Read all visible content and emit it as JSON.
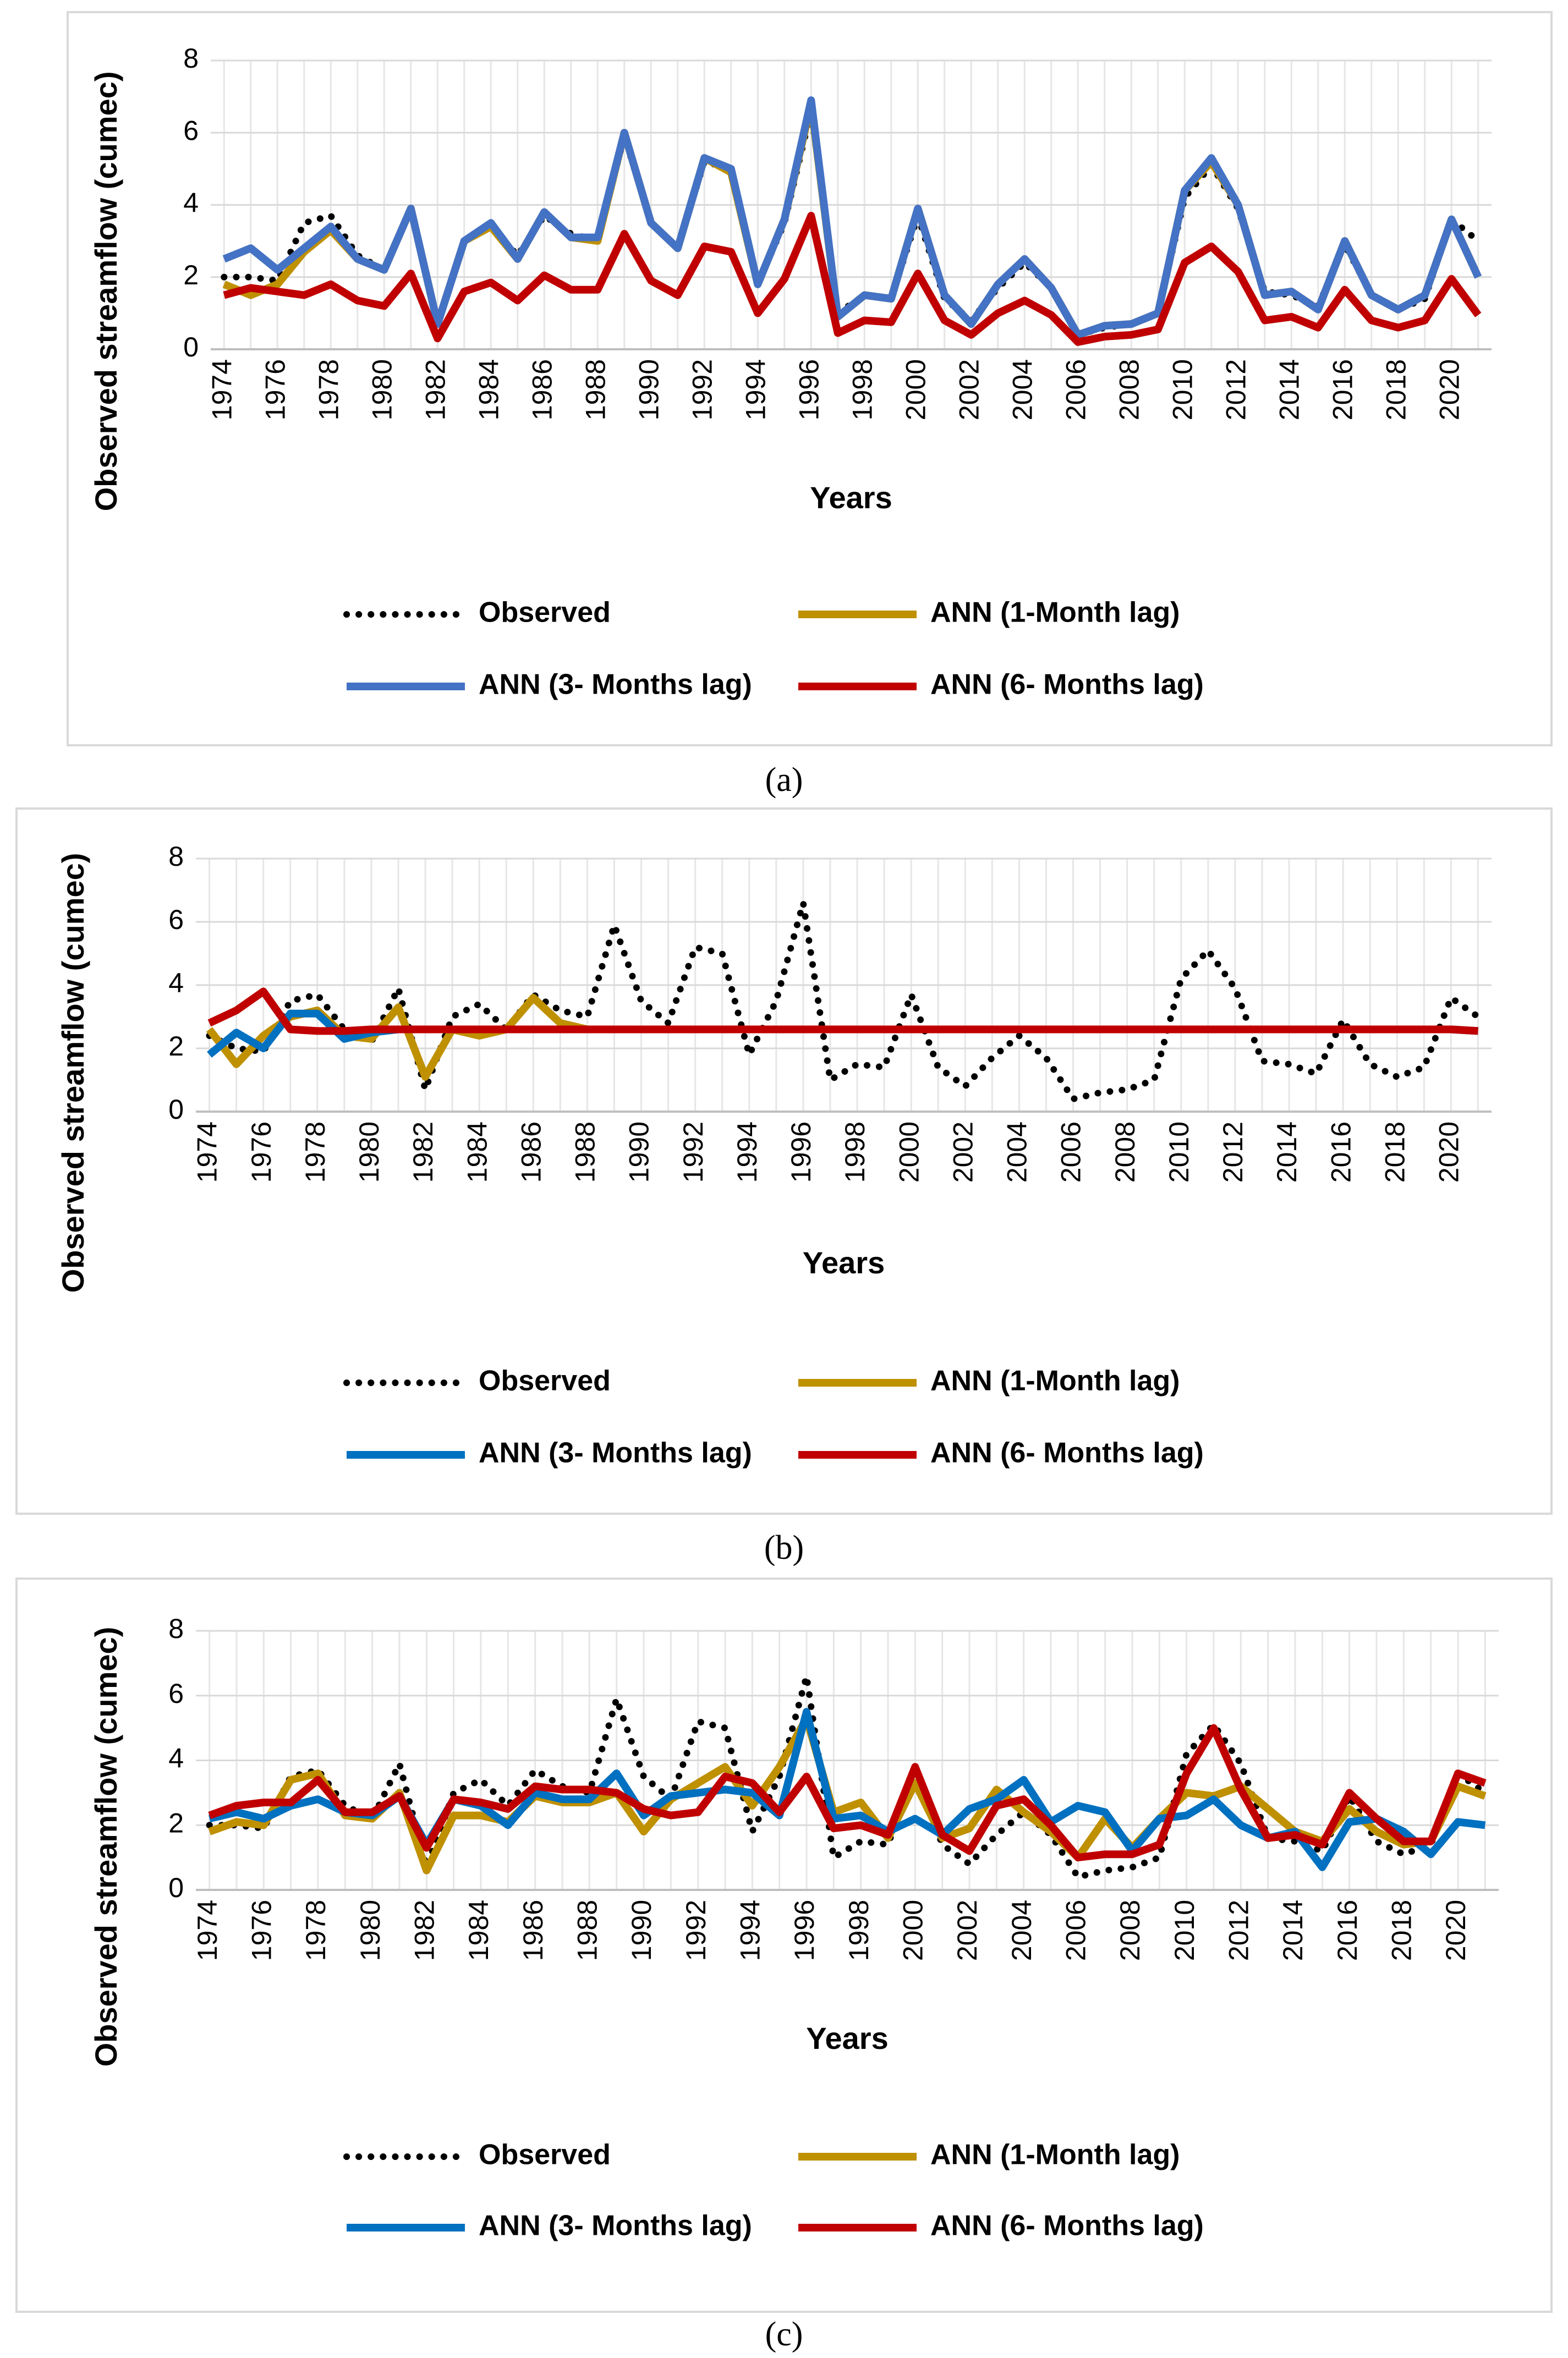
{
  "chart_data": [
    {
      "type": "line",
      "caption": "(a)",
      "xlabel": "Years",
      "ylabel": "Observed streamflow (cumec)",
      "x": [
        1974,
        1975,
        1976,
        1977,
        1978,
        1979,
        1980,
        1981,
        1982,
        1983,
        1984,
        1985,
        1986,
        1987,
        1988,
        1989,
        1990,
        1991,
        1992,
        1993,
        1994,
        1995,
        1996,
        1997,
        1998,
        1999,
        2000,
        2001,
        2002,
        2003,
        2004,
        2005,
        2006,
        2007,
        2008,
        2009,
        2010,
        2011,
        2012,
        2013,
        2014,
        2015,
        2016,
        2017,
        2018,
        2019,
        2020,
        2021
      ],
      "xlim": [
        1973.5,
        2021.5
      ],
      "xticks": [
        1974,
        1976,
        1978,
        1980,
        1982,
        1984,
        1986,
        1988,
        1990,
        1992,
        1994,
        1996,
        1998,
        2000,
        2002,
        2004,
        2006,
        2008,
        2010,
        2012,
        2014,
        2016,
        2018,
        2020
      ],
      "ylim": [
        0,
        8
      ],
      "yticks": [
        0,
        2,
        4,
        6,
        8
      ],
      "grid": true,
      "series": [
        {
          "name": "Observed",
          "color": "#000000",
          "style": "dotted",
          "values": [
            2.0,
            2.0,
            1.9,
            3.5,
            3.7,
            2.6,
            2.2,
            3.9,
            0.7,
            3.0,
            3.4,
            2.6,
            3.7,
            3.2,
            3.0,
            5.9,
            3.5,
            2.8,
            5.2,
            5.0,
            1.8,
            3.5,
            6.6,
            1.0,
            1.5,
            1.4,
            3.7,
            1.4,
            0.8,
            1.7,
            2.4,
            1.7,
            0.4,
            0.6,
            0.7,
            1.0,
            4.2,
            5.1,
            3.9,
            1.6,
            1.5,
            1.2,
            2.9,
            1.5,
            1.1,
            1.4,
            3.6,
            3.0
          ]
        },
        {
          "name": "ANN (1-Month lag)",
          "color": "#bf9000",
          "style": "solid",
          "values": [
            1.8,
            1.5,
            1.8,
            2.7,
            3.3,
            2.5,
            2.2,
            3.9,
            0.7,
            3.0,
            3.4,
            2.5,
            3.8,
            3.1,
            3.0,
            6.0,
            3.5,
            2.8,
            5.3,
            4.9,
            1.8,
            3.6,
            6.8,
            0.9,
            1.5,
            1.4,
            3.9,
            1.5,
            0.7,
            1.8,
            2.5,
            1.7,
            0.4,
            0.65,
            0.7,
            1.0,
            4.4,
            5.2,
            4.0,
            1.5,
            1.6,
            1.1,
            3.0,
            1.5,
            1.1,
            1.5,
            3.6,
            2.0
          ]
        },
        {
          "name": "ANN (3- Months lag)",
          "color": "#4472c4",
          "style": "solid",
          "values": [
            2.5,
            2.8,
            2.2,
            2.8,
            3.4,
            2.5,
            2.2,
            3.9,
            0.7,
            3.0,
            3.5,
            2.5,
            3.8,
            3.1,
            3.1,
            6.0,
            3.5,
            2.8,
            5.3,
            5.0,
            1.8,
            3.6,
            6.9,
            0.9,
            1.5,
            1.4,
            3.9,
            1.5,
            0.7,
            1.8,
            2.5,
            1.7,
            0.4,
            0.65,
            0.7,
            1.0,
            4.4,
            5.3,
            4.0,
            1.5,
            1.6,
            1.1,
            3.0,
            1.5,
            1.1,
            1.5,
            3.6,
            2.0
          ]
        },
        {
          "name": "ANN (6- Months lag)",
          "color": "#c00000",
          "style": "solid",
          "values": [
            1.5,
            1.7,
            1.6,
            1.5,
            1.8,
            1.35,
            1.2,
            2.1,
            0.3,
            1.6,
            1.85,
            1.35,
            2.05,
            1.65,
            1.65,
            3.2,
            1.9,
            1.5,
            2.85,
            2.7,
            1.0,
            1.95,
            3.7,
            0.45,
            0.8,
            0.75,
            2.1,
            0.8,
            0.4,
            1.0,
            1.35,
            0.95,
            0.2,
            0.35,
            0.4,
            0.55,
            2.4,
            2.85,
            2.15,
            0.8,
            0.9,
            0.6,
            1.65,
            0.8,
            0.6,
            0.8,
            1.95,
            0.95
          ]
        }
      ]
    },
    {
      "type": "line",
      "caption": "(b)",
      "xlabel": "Years",
      "ylabel": "Observed streamflow (cumec)",
      "x": [
        1974,
        1975,
        1976,
        1977,
        1978,
        1979,
        1980,
        1981,
        1982,
        1983,
        1984,
        1985,
        1986,
        1987,
        1988,
        1989,
        1990,
        1991,
        1992,
        1993,
        1994,
        1995,
        1996,
        1997,
        1998,
        1999,
        2000,
        2001,
        2002,
        2003,
        2004,
        2005,
        2006,
        2007,
        2008,
        2009,
        2010,
        2011,
        2012,
        2013,
        2014,
        2015,
        2016,
        2017,
        2018,
        2019,
        2020,
        2021
      ],
      "xlim": [
        1973.5,
        2021.5
      ],
      "xticks": [
        1974,
        1976,
        1978,
        1980,
        1982,
        1984,
        1986,
        1988,
        1990,
        1992,
        1994,
        1996,
        1998,
        2000,
        2002,
        2004,
        2006,
        2008,
        2010,
        2012,
        2014,
        2016,
        2018,
        2020
      ],
      "ylim": [
        0,
        8
      ],
      "yticks": [
        0,
        2,
        4,
        6,
        8
      ],
      "grid": true,
      "series": [
        {
          "name": "Observed",
          "color": "#000000",
          "style": "dotted",
          "values": [
            2.4,
            2.0,
            1.9,
            3.5,
            3.7,
            2.6,
            2.2,
            3.9,
            0.7,
            3.0,
            3.4,
            2.6,
            3.7,
            3.2,
            3.0,
            5.9,
            3.5,
            2.8,
            5.2,
            5.0,
            1.8,
            3.5,
            6.6,
            1.0,
            1.5,
            1.4,
            3.7,
            1.4,
            0.8,
            1.7,
            2.4,
            1.7,
            0.4,
            0.6,
            0.7,
            1.0,
            4.2,
            5.1,
            3.9,
            1.6,
            1.5,
            1.2,
            2.9,
            1.5,
            1.1,
            1.4,
            3.6,
            3.0
          ]
        },
        {
          "name": "ANN (1-Month lag)",
          "color": "#bf9000",
          "style": "solid",
          "values": [
            2.6,
            1.5,
            2.4,
            3.0,
            3.2,
            2.4,
            2.3,
            3.3,
            1.1,
            2.6,
            2.4,
            2.6,
            3.6,
            2.8,
            2.6,
            2.6,
            2.6,
            2.6,
            2.6,
            2.6,
            2.6,
            2.6,
            2.6,
            2.6,
            2.6,
            2.6,
            2.6,
            2.6,
            2.6,
            2.6,
            2.6,
            2.6,
            2.6,
            2.6,
            2.6,
            2.6,
            2.6,
            2.6,
            2.6,
            2.6,
            2.6,
            2.6,
            2.6,
            2.6,
            2.6,
            2.6,
            2.6,
            2.55
          ]
        },
        {
          "name": "ANN (3- Months lag)",
          "color": "#0070c0",
          "style": "solid",
          "values": [
            1.8,
            2.5,
            2.0,
            3.1,
            3.1,
            2.3,
            2.5,
            2.6,
            2.6,
            2.6,
            2.6,
            2.6,
            2.6,
            2.6,
            2.6,
            2.6,
            2.6,
            2.6,
            2.6,
            2.6,
            2.6,
            2.6,
            2.6,
            2.6,
            2.6,
            2.6,
            2.6,
            2.6,
            2.6,
            2.6,
            2.6,
            2.6,
            2.6,
            2.6,
            2.6,
            2.6,
            2.6,
            2.6,
            2.6,
            2.6,
            2.6,
            2.6,
            2.6,
            2.6,
            2.6,
            2.6,
            2.6,
            2.55
          ]
        },
        {
          "name": "ANN (6- Months lag)",
          "color": "#c00000",
          "style": "solid",
          "values": [
            2.8,
            3.2,
            3.8,
            2.6,
            2.55,
            2.55,
            2.6,
            2.6,
            2.6,
            2.6,
            2.6,
            2.6,
            2.6,
            2.6,
            2.6,
            2.6,
            2.6,
            2.6,
            2.6,
            2.6,
            2.6,
            2.6,
            2.6,
            2.6,
            2.6,
            2.6,
            2.6,
            2.6,
            2.6,
            2.6,
            2.6,
            2.6,
            2.6,
            2.6,
            2.6,
            2.6,
            2.6,
            2.6,
            2.6,
            2.6,
            2.6,
            2.6,
            2.6,
            2.6,
            2.6,
            2.6,
            2.6,
            2.55
          ]
        }
      ]
    },
    {
      "type": "line",
      "caption": "(c)",
      "xlabel": "Years",
      "ylabel": "Observed streamflow (cumec)",
      "x": [
        1974,
        1975,
        1976,
        1977,
        1978,
        1979,
        1980,
        1981,
        1982,
        1983,
        1984,
        1985,
        1986,
        1987,
        1988,
        1989,
        1990,
        1991,
        1992,
        1993,
        1994,
        1995,
        1996,
        1997,
        1998,
        1999,
        2000,
        2001,
        2002,
        2003,
        2004,
        2005,
        2006,
        2007,
        2008,
        2009,
        2010,
        2011,
        2012,
        2013,
        2014,
        2015,
        2016,
        2017,
        2018,
        2019,
        2020,
        2021
      ],
      "xlim": [
        1973.5,
        2021.5
      ],
      "xticks": [
        1974,
        1976,
        1978,
        1980,
        1982,
        1984,
        1986,
        1988,
        1990,
        1992,
        1994,
        1996,
        1998,
        2000,
        2002,
        2004,
        2006,
        2008,
        2010,
        2012,
        2014,
        2016,
        2018,
        2020
      ],
      "ylim": [
        0,
        8
      ],
      "yticks": [
        0,
        2,
        4,
        6,
        8
      ],
      "grid": true,
      "series": [
        {
          "name": "Observed",
          "color": "#000000",
          "style": "dotted",
          "values": [
            2.0,
            2.0,
            1.9,
            3.5,
            3.7,
            2.6,
            2.2,
            3.9,
            0.7,
            3.0,
            3.4,
            2.6,
            3.7,
            3.2,
            3.0,
            5.9,
            3.5,
            2.8,
            5.2,
            5.0,
            1.8,
            3.5,
            6.6,
            1.0,
            1.5,
            1.4,
            3.7,
            1.4,
            0.8,
            1.7,
            2.4,
            1.7,
            0.4,
            0.6,
            0.7,
            1.0,
            4.2,
            5.1,
            3.9,
            1.6,
            1.5,
            1.2,
            2.9,
            1.5,
            1.1,
            1.4,
            3.6,
            3.0
          ]
        },
        {
          "name": "ANN (1-Month lag)",
          "color": "#bf9000",
          "style": "solid",
          "values": [
            1.8,
            2.1,
            2.0,
            3.4,
            3.6,
            2.3,
            2.2,
            3.0,
            0.6,
            2.3,
            2.3,
            2.1,
            2.9,
            2.7,
            2.7,
            3.0,
            1.8,
            2.8,
            3.3,
            3.8,
            2.6,
            3.8,
            5.3,
            2.4,
            2.7,
            1.6,
            3.3,
            1.6,
            1.9,
            3.1,
            2.4,
            1.8,
            1.0,
            2.2,
            1.3,
            2.2,
            3.0,
            2.9,
            3.2,
            2.5,
            1.8,
            1.5,
            2.5,
            1.8,
            1.4,
            1.5,
            3.2,
            2.9
          ]
        },
        {
          "name": "ANN (3- Months lag)",
          "color": "#0070c0",
          "style": "solid",
          "values": [
            2.2,
            2.4,
            2.2,
            2.6,
            2.8,
            2.4,
            2.3,
            2.9,
            1.4,
            2.8,
            2.6,
            2.0,
            3.0,
            2.8,
            2.8,
            3.6,
            2.3,
            2.9,
            3.0,
            3.1,
            3.0,
            2.3,
            5.5,
            2.2,
            2.3,
            1.8,
            2.2,
            1.7,
            2.5,
            2.8,
            3.4,
            2.1,
            2.6,
            2.4,
            1.2,
            2.2,
            2.3,
            2.8,
            2.0,
            1.6,
            1.8,
            0.7,
            2.1,
            2.2,
            1.8,
            1.1,
            2.1,
            2.0
          ]
        },
        {
          "name": "ANN (6- Months lag)",
          "color": "#c00000",
          "style": "solid",
          "values": [
            2.3,
            2.6,
            2.7,
            2.7,
            3.4,
            2.4,
            2.4,
            2.9,
            1.3,
            2.8,
            2.7,
            2.5,
            3.2,
            3.1,
            3.1,
            3.0,
            2.5,
            2.3,
            2.4,
            3.5,
            3.3,
            2.4,
            3.5,
            1.9,
            2.0,
            1.7,
            3.8,
            1.7,
            1.2,
            2.6,
            2.8,
            2.0,
            1.0,
            1.1,
            1.1,
            1.4,
            3.6,
            5.0,
            3.1,
            1.6,
            1.7,
            1.4,
            3.0,
            2.2,
            1.5,
            1.5,
            3.6,
            3.3
          ]
        }
      ]
    }
  ]
}
